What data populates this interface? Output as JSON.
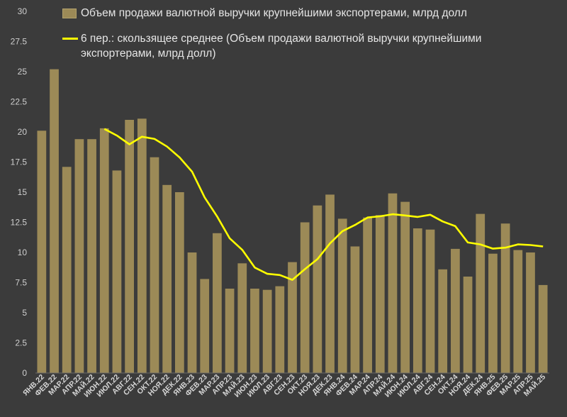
{
  "chart_data": {
    "type": "bar",
    "categories": [
      "ЯНВ.22",
      "ФЕВ.22",
      "МАР.22",
      "АПР.22",
      "МАЙ.22",
      "ИЮН.22",
      "ИЮЛ.22",
      "АВГ.22",
      "СЕН.22",
      "ОКТ.22",
      "НОЯ.22",
      "ДЕК.22",
      "ЯНВ.23",
      "ФЕВ.23",
      "МАР.23",
      "АПР.23",
      "МАЙ.23",
      "ИЮН.23",
      "ИЮЛ.23",
      "АВГ.23",
      "СЕН.23",
      "ОКТ.23",
      "НОЯ.23",
      "ДЕК.23",
      "ЯНВ.24",
      "ФЕВ.24",
      "МАР.24",
      "АПР.24",
      "МАЙ.24",
      "ИЮН.24",
      "ИЮЛ.24",
      "АВГ.24",
      "СЕН.24",
      "ОКТ.24",
      "НОЯ.24",
      "ДЕК.24",
      "ЯНВ.25",
      "ФЕВ.25",
      "МАР.25",
      "АПР.25",
      "МАЙ.25"
    ],
    "series": [
      {
        "name": "Объем продажи  валютной выручки крупнейшими экспортерами, млрд долл",
        "kind": "bar",
        "color": "#9c8a57",
        "values": [
          20.1,
          25.2,
          17.1,
          19.4,
          19.4,
          20.3,
          16.8,
          21.0,
          21.1,
          17.9,
          15.6,
          15.0,
          10.0,
          7.8,
          11.6,
          7.0,
          9.1,
          7.0,
          6.9,
          7.2,
          9.2,
          12.5,
          13.9,
          14.8,
          12.8,
          10.5,
          12.9,
          13.1,
          14.9,
          14.2,
          12.0,
          11.9,
          8.6,
          10.3,
          8.0,
          13.2,
          9.9,
          12.4,
          10.2,
          10.0,
          7.3
        ]
      },
      {
        "name": "6 пер.: скользящее среднее (Объем продажи  валютной выручки крупнейшими экспортерами, млрд долл)",
        "kind": "line",
        "color": "#ffff00",
        "values": [
          null,
          null,
          null,
          null,
          null,
          20.25,
          19.7,
          18.97,
          19.6,
          19.42,
          18.78,
          17.88,
          16.7,
          14.57,
          12.98,
          11.17,
          10.22,
          8.75,
          8.23,
          8.13,
          7.73,
          8.62,
          9.45,
          10.75,
          11.77,
          12.28,
          12.9,
          13.0,
          13.17,
          13.07,
          12.95,
          13.13,
          12.57,
          12.18,
          10.83,
          10.67,
          10.32,
          10.4,
          10.67,
          10.62,
          10.5
        ]
      }
    ],
    "title": "",
    "xlabel": "",
    "ylabel": "",
    "ylim": [
      0,
      30
    ],
    "yticks": [
      "0",
      "2.5",
      "5",
      "7.5",
      "10",
      "12.5",
      "15",
      "17.5",
      "20",
      "22.5",
      "25",
      "27.5",
      "30"
    ],
    "grid": false,
    "legend_position": "top"
  }
}
